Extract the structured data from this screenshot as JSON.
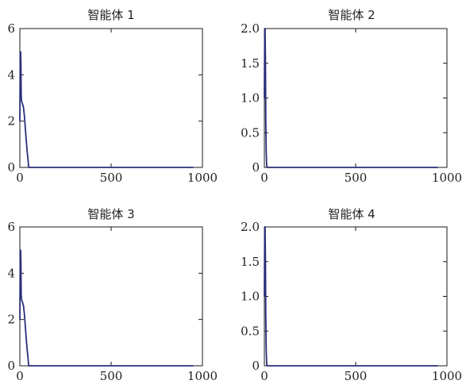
{
  "line_color": "#2a2f7a",
  "chart_data": [
    {
      "type": "line",
      "title": "智能体 1",
      "xlabel": "",
      "ylabel": "",
      "xlim": [
        0,
        1000
      ],
      "ylim": [
        0,
        6
      ],
      "xticks": [
        0,
        500,
        1000
      ],
      "xtick_labels": [
        "0",
        "500",
        "1000"
      ],
      "yticks": [
        0,
        2,
        4,
        6
      ],
      "ytick_labels": [
        "0",
        "2",
        "4",
        "6"
      ],
      "grid": false,
      "series": [
        {
          "x": [
            0,
            2,
            4,
            5,
            6,
            7,
            8,
            10,
            14,
            20,
            25,
            30,
            35,
            40,
            45,
            48,
            50,
            60,
            100,
            200,
            400,
            600,
            800,
            950
          ],
          "values": [
            2.0,
            5.0,
            5.0,
            4.9,
            4.4,
            3.5,
            3.0,
            2.85,
            2.75,
            2.6,
            2.2,
            1.7,
            1.2,
            0.7,
            0.3,
            0.05,
            0.0,
            0.0,
            0.0,
            0.0,
            0.0,
            0.0,
            0.0,
            0.0
          ]
        }
      ]
    },
    {
      "type": "line",
      "title": "智能体 2",
      "xlabel": "",
      "ylabel": "",
      "xlim": [
        0,
        1000
      ],
      "ylim": [
        0,
        2
      ],
      "xticks": [
        0,
        500,
        1000
      ],
      "xtick_labels": [
        "0",
        "500",
        "1000"
      ],
      "yticks": [
        0,
        0.5,
        1,
        1.5,
        2
      ],
      "ytick_labels": [
        "0",
        "0.5",
        "1.0",
        "1.5",
        "2.0"
      ],
      "grid": false,
      "series": [
        {
          "x": [
            0,
            2,
            4,
            6,
            8,
            10,
            12,
            14,
            16,
            20,
            40,
            100,
            200,
            400,
            600,
            800,
            950
          ],
          "values": [
            1.0,
            2.0,
            2.0,
            1.5,
            0.7,
            0.25,
            0.05,
            0.01,
            0.0,
            0.0,
            0.0,
            0.0,
            0.0,
            0.0,
            0.0,
            0.0,
            0.0
          ]
        }
      ]
    },
    {
      "type": "line",
      "title": "智能体 3",
      "xlabel": "",
      "ylabel": "",
      "xlim": [
        0,
        1000
      ],
      "ylim": [
        0,
        6
      ],
      "xticks": [
        0,
        500,
        1000
      ],
      "xtick_labels": [
        "0",
        "500",
        "1000"
      ],
      "yticks": [
        0,
        2,
        4,
        6
      ],
      "ytick_labels": [
        "0",
        "2",
        "4",
        "6"
      ],
      "grid": false,
      "series": [
        {
          "x": [
            0,
            2,
            4,
            5,
            6,
            7,
            8,
            10,
            14,
            20,
            25,
            30,
            35,
            40,
            45,
            48,
            50,
            60,
            100,
            200,
            400,
            600,
            800,
            950
          ],
          "values": [
            2.0,
            5.0,
            5.0,
            4.9,
            4.4,
            3.5,
            3.0,
            2.85,
            2.75,
            2.6,
            2.2,
            1.7,
            1.2,
            0.7,
            0.3,
            0.05,
            0.0,
            0.0,
            0.0,
            0.0,
            0.0,
            0.0,
            0.0,
            0.0
          ]
        }
      ]
    },
    {
      "type": "line",
      "title": "智能体 4",
      "xlabel": "",
      "ylabel": "",
      "xlim": [
        0,
        1000
      ],
      "ylim": [
        0,
        2
      ],
      "xticks": [
        0,
        500,
        1000
      ],
      "xtick_labels": [
        "0",
        "500",
        "1000"
      ],
      "yticks": [
        0,
        0.5,
        1,
        1.5,
        2
      ],
      "ytick_labels": [
        "0",
        "0.5",
        "1.0",
        "1.5",
        "2.0"
      ],
      "grid": false,
      "series": [
        {
          "x": [
            0,
            2,
            4,
            6,
            8,
            10,
            12,
            14,
            16,
            20,
            40,
            100,
            200,
            400,
            600,
            800,
            950
          ],
          "values": [
            1.0,
            2.0,
            2.0,
            1.5,
            0.7,
            0.25,
            0.05,
            0.01,
            0.0,
            0.0,
            0.0,
            0.0,
            0.0,
            0.0,
            0.0,
            0.0,
            0.0
          ]
        }
      ]
    }
  ]
}
